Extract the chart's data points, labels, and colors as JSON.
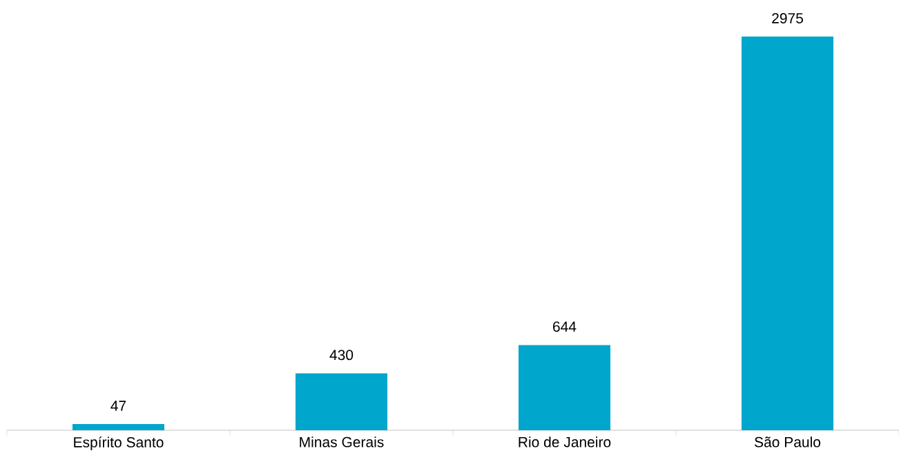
{
  "chart_data": {
    "type": "bar",
    "categories": [
      "Espírito Santo",
      "Minas Gerais",
      "Rio de Janeiro",
      "São Paulo"
    ],
    "values": [
      47,
      430,
      644,
      2975
    ],
    "color": "#00a6cc",
    "data_labels": true
  }
}
